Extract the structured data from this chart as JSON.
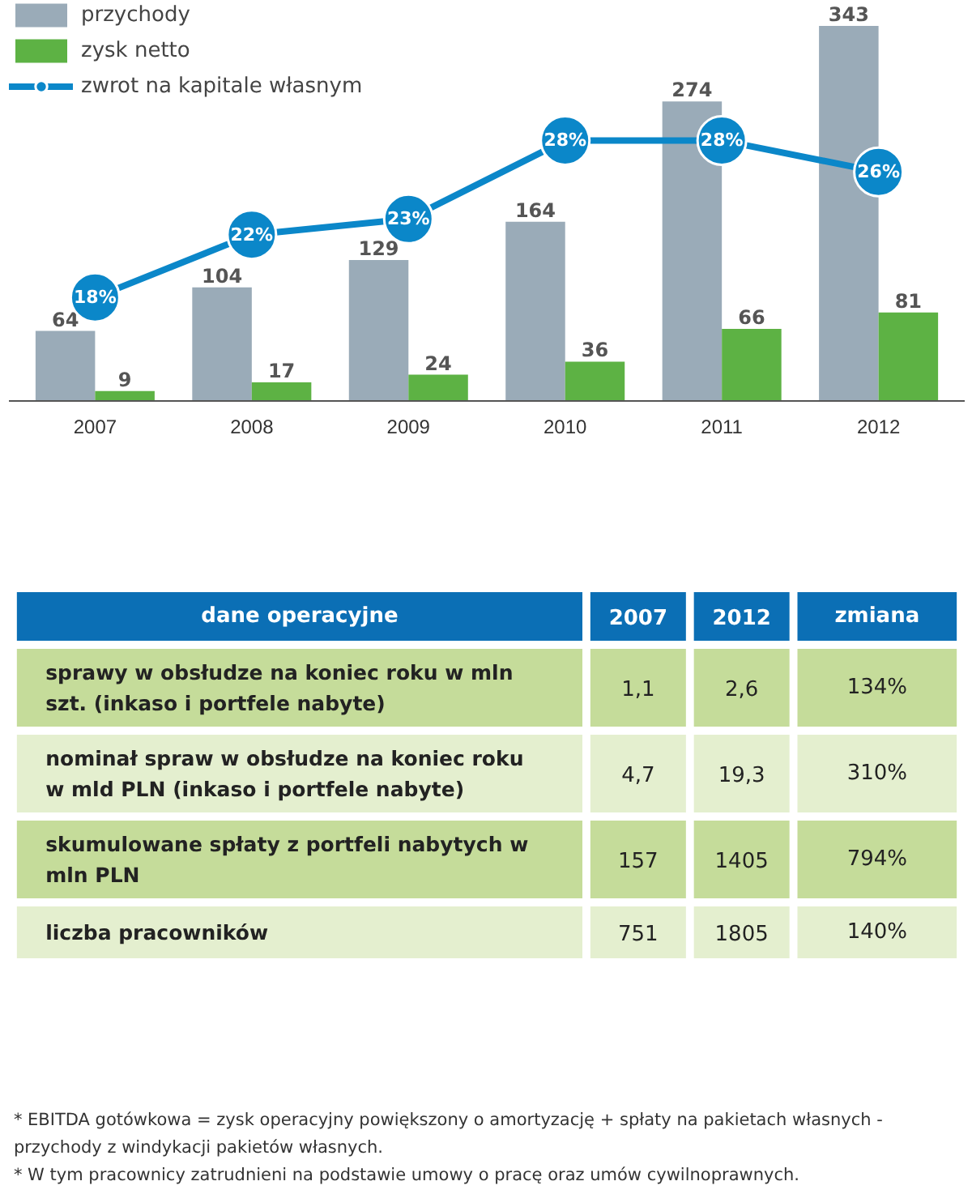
{
  "chart_data": [
    {
      "type": "bar",
      "categories": [
        "2007",
        "2008",
        "2009",
        "2010",
        "2011",
        "2012"
      ],
      "series": [
        {
          "name": "przychody",
          "color": "#9aabb8",
          "values": [
            64,
            104,
            129,
            164,
            274,
            343
          ]
        },
        {
          "name": "zysk netto",
          "color": "#5db244",
          "values": [
            9,
            17,
            24,
            36,
            66,
            81
          ]
        },
        {
          "name": "zwrot na kapitale własnym",
          "type": "line",
          "axis": "y2",
          "color": "#0b87c9",
          "values": [
            18,
            22,
            23,
            28,
            28,
            26
          ],
          "value_labels": [
            "18%",
            "22%",
            "23%",
            "28%",
            "28%",
            "26%"
          ]
        }
      ],
      "ylim": [
        0,
        366
      ],
      "y2lim": [
        11.4,
        36.9
      ],
      "data_labels": true,
      "grid": false,
      "legend": "top left",
      "marker": "circle",
      "tick_labels": "x"
    },
    {
      "type": "other",
      "title": "dane operacyjne",
      "categories": [
        "sprawy w obsłudze na koniec roku w mln szt. (inkaso i portfele nabyte)",
        "nominał spraw w obsłudze na koniec roku w mld PLN (inkaso i portfele nabyte)",
        "skumulowane spłaty z portfeli nabytych w mln PLN",
        "liczba pracowników"
      ],
      "colors": [
        "#c5dc9a",
        "#e4efcf",
        "#c5dc9a",
        "#e4efcf"
      ],
      "series": [
        {
          "name": "2007",
          "colors": [
            "#c5dc9a",
            "#e4efcf",
            "#c5dc9a",
            "#e4efcf"
          ],
          "values": [
            1.1,
            4.7,
            157,
            751
          ],
          "value_labels": [
            "1,1",
            "4,7",
            "157",
            "751"
          ]
        },
        {
          "name": "2012",
          "colors": [
            "#c5dc9a",
            "#e4efcf",
            "#c5dc9a",
            "#e4efcf"
          ],
          "values": [
            2.6,
            19.3,
            1405,
            1805
          ],
          "value_labels": [
            "2,6",
            "19,3",
            "1405",
            "1805"
          ]
        },
        {
          "name": "zmiana",
          "colors": [
            "#c5dc9a",
            "#e4efcf",
            "#c5dc9a",
            "#e4efcf"
          ],
          "values": [
            134,
            310,
            794,
            140
          ],
          "value_labels": [
            "134%",
            "310%",
            "794%",
            "140%"
          ]
        }
      ],
      "annotations": [
        "* EBITDA gotówkowa = zysk operacyjny powiększony o amortyzację + spłaty na pakietach własnych - przychody z windykacji pakietów własnych.",
        "* W tym pracownicy zatrudnieni na podstawie umowy o pracę oraz umów cywilnoprawnych."
      ]
    }
  ]
}
